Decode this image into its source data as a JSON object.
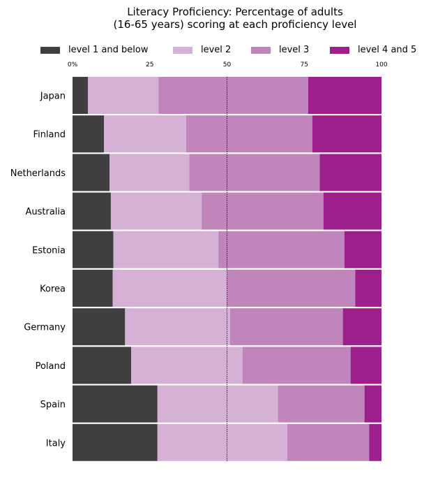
{
  "chart_data": {
    "type": "bar",
    "orientation": "horizontal-stacked-100",
    "title_line1": "Literacy Proficiency: Percentage of adults",
    "title_line2": "(16-65 years) scoring at each proficiency level",
    "xlabel": "",
    "ylabel": "",
    "xlim": [
      0,
      100
    ],
    "x_ticks": [
      "0%",
      "25",
      "50",
      "75",
      "100"
    ],
    "x_tick_values": [
      0,
      25,
      50,
      75,
      100
    ],
    "reference_line": 50,
    "grid": false,
    "legend_position": "top",
    "categories": [
      "Japan",
      "Finland",
      "Netherlands",
      "Australia",
      "Estonia",
      "Korea",
      "Germany",
      "Poland",
      "Spain",
      "Italy"
    ],
    "series": [
      {
        "name": "level 1 and below",
        "color": "#3f3f3f",
        "values": [
          5.0,
          10.2,
          12.0,
          12.4,
          13.2,
          13.0,
          17.0,
          19.0,
          27.5,
          27.5
        ]
      },
      {
        "name": "level 2",
        "color": "#d5b1d5",
        "values": [
          22.8,
          26.6,
          25.8,
          29.4,
          34.0,
          37.0,
          34.0,
          36.0,
          39.0,
          42.0
        ]
      },
      {
        "name": "level 3",
        "color": "#c086bc",
        "values": [
          48.5,
          40.8,
          42.2,
          39.4,
          40.8,
          41.5,
          36.5,
          35.0,
          28.0,
          26.5
        ]
      },
      {
        "name": "level 4 and 5",
        "color": "#9c1f8c",
        "values": [
          23.7,
          22.4,
          20.0,
          18.8,
          12.0,
          8.5,
          12.5,
          10.0,
          5.5,
          4.0
        ]
      }
    ]
  }
}
